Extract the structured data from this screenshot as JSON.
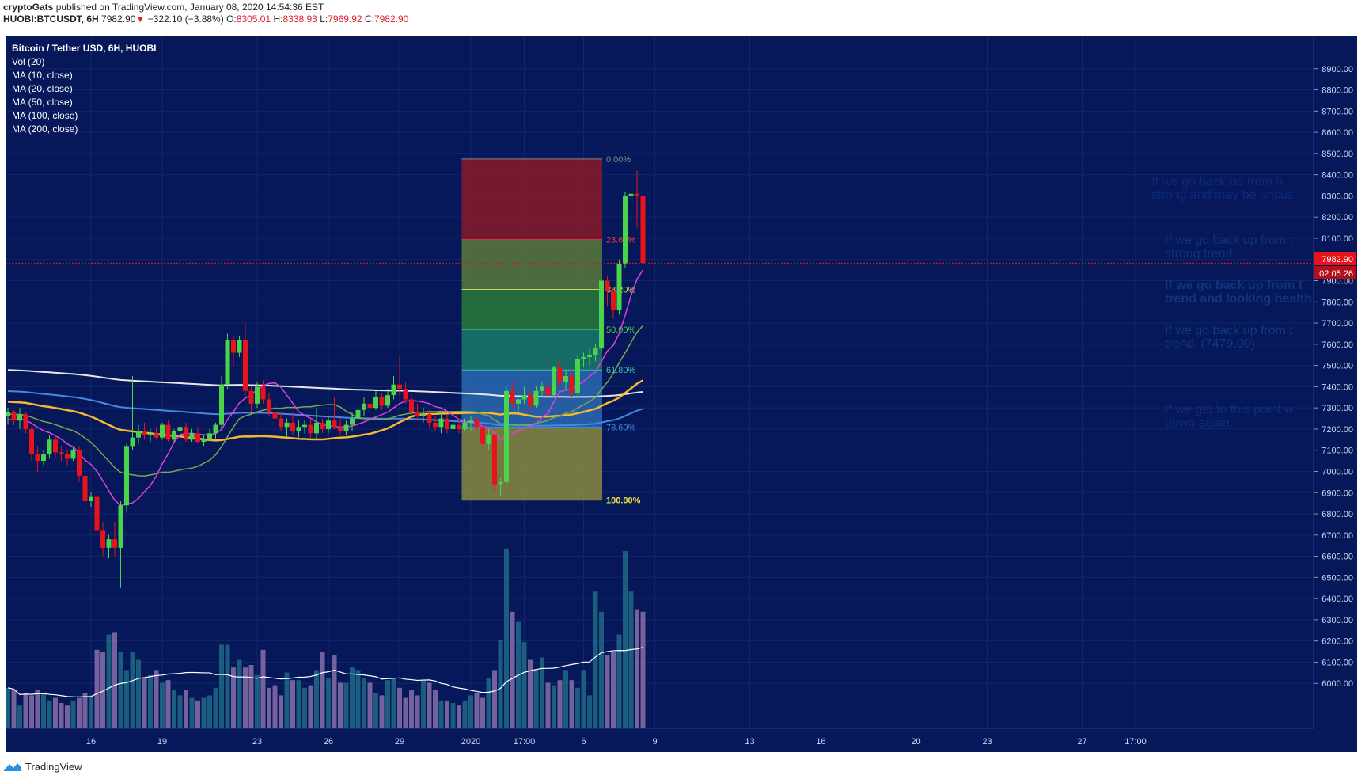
{
  "header": {
    "author": "cryptoGats",
    "published_text": "published on TradingView.com, January 08, 2020 14:54:36 EST",
    "symbol": "HUOBI:BTCUSDT, 6H",
    "last": "7982.90",
    "change_arrow": "▼",
    "change": "−322.10 (−3.88%)",
    "o_label": "O:",
    "o_value": "8305.01",
    "h_label": "H:",
    "h_value": "8338.93",
    "l_label": "L:",
    "l_value": "7969.92",
    "c_label": "C:",
    "c_value": "7982.90"
  },
  "legend": {
    "title": "Bitcoin / Tether USD, 6H, HUOBI",
    "items": [
      "Vol (20)",
      "MA (10, close)",
      "MA (20, close)",
      "MA (50, close)",
      "MA (100, close)",
      "MA (200, close)"
    ]
  },
  "price_badge": {
    "value": "7982.90",
    "countdown": "02:05:26"
  },
  "notes": [
    {
      "line1": "If we go back up from h",
      "line2": "strong and may be unsus"
    },
    {
      "line1": "If we go back up from t",
      "line2": "strong trend"
    },
    {
      "line1": "If we go back up from t",
      "line2": "trend and looking health"
    },
    {
      "line1": "If we go back up from t",
      "line2": "trend. (7479.00)"
    },
    {
      "line1": "If we get to this point w",
      "line2": "down again."
    }
  ],
  "footer": {
    "brand": "TradingView"
  },
  "colors": {
    "background": "#06185a",
    "up": "#4ad44a",
    "down": "#e8131b",
    "ma10": "#e040e0",
    "ma20": "#7aa84a",
    "ma50": "#f5b830",
    "ma100": "#4a88e0",
    "ma200": "#e8e8e8"
  },
  "chart_data": {
    "type": "candlestick",
    "ylim": [
      5900,
      9000
    ],
    "y_ticks": [
      "6000.00",
      "6100.00",
      "6200.00",
      "6300.00",
      "6400.00",
      "6500.00",
      "6600.00",
      "6700.00",
      "6800.00",
      "6900.00",
      "7000.00",
      "7100.00",
      "7200.00",
      "7300.00",
      "7400.00",
      "7500.00",
      "7600.00",
      "7700.00",
      "7800.00",
      "7900.00",
      "8000.00",
      "8100.00",
      "8200.00",
      "8300.00",
      "8400.00",
      "8500.00",
      "8600.00",
      "8700.00",
      "8800.00",
      "8900.00"
    ],
    "x_ticks": [
      {
        "label": "16",
        "bar": 14
      },
      {
        "label": "19",
        "bar": 26
      },
      {
        "label": "23",
        "bar": 42
      },
      {
        "label": "26",
        "bar": 54
      },
      {
        "label": "29",
        "bar": 66
      },
      {
        "label": "2020",
        "bar": 78
      },
      {
        "label": "17:00",
        "bar": 87
      },
      {
        "label": "6",
        "bar": 97
      },
      {
        "label": "9",
        "bar": 109
      },
      {
        "label": "13",
        "bar": 125
      },
      {
        "label": "16",
        "bar": 137
      },
      {
        "label": "20",
        "bar": 153
      },
      {
        "label": "23",
        "bar": 165
      },
      {
        "label": "27",
        "bar": 181
      },
      {
        "label": "17:00",
        "bar": 190
      }
    ],
    "candles": [
      [
        7260,
        7300,
        7220,
        7280
      ],
      [
        7280,
        7290,
        7220,
        7240
      ],
      [
        7240,
        7300,
        7200,
        7270
      ],
      [
        7270,
        7280,
        7180,
        7200
      ],
      [
        7200,
        7210,
        7050,
        7080
      ],
      [
        7080,
        7120,
        7000,
        7050
      ],
      [
        7050,
        7100,
        7030,
        7080
      ],
      [
        7080,
        7170,
        7060,
        7150
      ],
      [
        7150,
        7170,
        7060,
        7090
      ],
      [
        7090,
        7120,
        7050,
        7080
      ],
      [
        7080,
        7100,
        7030,
        7060
      ],
      [
        7060,
        7120,
        7050,
        7100
      ],
      [
        7100,
        7120,
        6950,
        6980
      ],
      [
        6980,
        7000,
        6820,
        6860
      ],
      [
        6860,
        6900,
        6830,
        6880
      ],
      [
        6880,
        6900,
        6680,
        6720
      ],
      [
        6720,
        6760,
        6600,
        6640
      ],
      [
        6640,
        6700,
        6590,
        6680
      ],
      [
        6680,
        6760,
        6600,
        6640
      ],
      [
        6640,
        6860,
        6450,
        6840
      ],
      [
        6840,
        7130,
        6810,
        7120
      ],
      [
        7120,
        7450,
        7100,
        7160
      ],
      [
        7160,
        7220,
        7130,
        7190
      ],
      [
        7190,
        7230,
        7150,
        7170
      ],
      [
        7170,
        7200,
        7140,
        7180
      ],
      [
        7180,
        7210,
        7150,
        7160
      ],
      [
        7160,
        7230,
        7150,
        7220
      ],
      [
        7220,
        7240,
        7140,
        7150
      ],
      [
        7150,
        7200,
        7140,
        7190
      ],
      [
        7190,
        7260,
        7170,
        7210
      ],
      [
        7210,
        7230,
        7140,
        7150
      ],
      [
        7150,
        7200,
        7140,
        7180
      ],
      [
        7180,
        7210,
        7130,
        7140
      ],
      [
        7140,
        7170,
        7120,
        7150
      ],
      [
        7150,
        7200,
        7140,
        7180
      ],
      [
        7180,
        7230,
        7150,
        7220
      ],
      [
        7220,
        7450,
        7200,
        7410
      ],
      [
        7410,
        7650,
        7390,
        7620
      ],
      [
        7620,
        7640,
        7500,
        7560
      ],
      [
        7560,
        7640,
        7540,
        7620
      ],
      [
        7620,
        7700,
        7350,
        7380
      ],
      [
        7380,
        7400,
        7280,
        7320
      ],
      [
        7320,
        7420,
        7300,
        7400
      ],
      [
        7400,
        7430,
        7320,
        7340
      ],
      [
        7340,
        7370,
        7260,
        7280
      ],
      [
        7280,
        7320,
        7230,
        7250
      ],
      [
        7250,
        7280,
        7190,
        7210
      ],
      [
        7210,
        7250,
        7160,
        7230
      ],
      [
        7230,
        7280,
        7170,
        7190
      ],
      [
        7190,
        7240,
        7160,
        7210
      ],
      [
        7210,
        7240,
        7180,
        7220
      ],
      [
        7220,
        7250,
        7160,
        7180
      ],
      [
        7180,
        7300,
        7150,
        7230
      ],
      [
        7230,
        7250,
        7180,
        7200
      ],
      [
        7200,
        7260,
        7180,
        7240
      ],
      [
        7240,
        7350,
        7200,
        7210
      ],
      [
        7210,
        7250,
        7170,
        7190
      ],
      [
        7190,
        7240,
        7170,
        7220
      ],
      [
        7220,
        7280,
        7190,
        7250
      ],
      [
        7250,
        7310,
        7230,
        7290
      ],
      [
        7290,
        7350,
        7260,
        7320
      ],
      [
        7320,
        7360,
        7280,
        7300
      ],
      [
        7300,
        7380,
        7290,
        7350
      ],
      [
        7350,
        7370,
        7290,
        7310
      ],
      [
        7310,
        7390,
        7300,
        7360
      ],
      [
        7360,
        7450,
        7340,
        7410
      ],
      [
        7410,
        7540,
        7360,
        7390
      ],
      [
        7390,
        7420,
        7320,
        7340
      ],
      [
        7340,
        7360,
        7260,
        7280
      ],
      [
        7280,
        7320,
        7240,
        7260
      ],
      [
        7260,
        7300,
        7230,
        7270
      ],
      [
        7270,
        7290,
        7210,
        7230
      ],
      [
        7230,
        7260,
        7190,
        7210
      ],
      [
        7210,
        7280,
        7180,
        7250
      ],
      [
        7250,
        7270,
        7180,
        7200
      ],
      [
        7200,
        7240,
        7150,
        7220
      ],
      [
        7220,
        7250,
        7180,
        7200
      ],
      [
        7200,
        7250,
        7190,
        7230
      ],
      [
        7230,
        7260,
        7190,
        7240
      ],
      [
        7240,
        7260,
        7200,
        7210
      ],
      [
        7210,
        7230,
        7110,
        7130
      ],
      [
        7130,
        7200,
        7100,
        7170
      ],
      [
        7170,
        7180,
        6900,
        6940
      ],
      [
        6940,
        6970,
        6880,
        6950
      ],
      [
        6950,
        7400,
        6940,
        7380
      ],
      [
        7380,
        7420,
        7300,
        7320
      ],
      [
        7320,
        7350,
        7280,
        7340
      ],
      [
        7340,
        7400,
        7320,
        7360
      ],
      [
        7360,
        7380,
        7290,
        7310
      ],
      [
        7310,
        7400,
        7300,
        7380
      ],
      [
        7380,
        7420,
        7350,
        7400
      ],
      [
        7400,
        7420,
        7340,
        7360
      ],
      [
        7360,
        7500,
        7350,
        7490
      ],
      [
        7490,
        7520,
        7400,
        7420
      ],
      [
        7420,
        7480,
        7380,
        7450
      ],
      [
        7450,
        7480,
        7350,
        7370
      ],
      [
        7370,
        7550,
        7360,
        7530
      ],
      [
        7530,
        7560,
        7490,
        7540
      ],
      [
        7540,
        7580,
        7500,
        7550
      ],
      [
        7550,
        7600,
        7520,
        7580
      ],
      [
        7580,
        7910,
        7570,
        7900
      ],
      [
        7900,
        7920,
        7780,
        7850
      ],
      [
        7850,
        7870,
        7720,
        7760
      ],
      [
        7760,
        8000,
        7740,
        7980
      ],
      [
        7980,
        8320,
        7960,
        8300
      ],
      [
        8300,
        8480,
        8050,
        8310
      ],
      [
        8310,
        8420,
        8150,
        8300
      ],
      [
        8300,
        8340,
        7970,
        7983
      ]
    ],
    "volume": [
      160,
      150,
      90,
      140,
      130,
      150,
      140,
      110,
      120,
      100,
      90,
      110,
      120,
      140,
      130,
      310,
      300,
      370,
      380,
      300,
      230,
      300,
      270,
      200,
      210,
      230,
      180,
      190,
      150,
      130,
      150,
      120,
      110,
      120,
      130,
      160,
      330,
      330,
      240,
      270,
      240,
      250,
      210,
      310,
      160,
      170,
      130,
      220,
      190,
      190,
      160,
      170,
      230,
      300,
      200,
      290,
      180,
      180,
      240,
      230,
      200,
      180,
      140,
      130,
      190,
      200,
      160,
      120,
      150,
      130,
      190,
      180,
      150,
      110,
      110,
      100,
      90,
      110,
      130,
      140,
      120,
      200,
      230,
      350,
      710,
      460,
      420,
      340,
      270,
      230,
      280,
      180,
      170,
      190,
      230,
      190,
      160,
      230,
      130,
      540,
      460,
      290,
      300,
      370,
      700,
      540,
      470,
      460
    ],
    "volume_ylim": [
      0,
      1000
    ],
    "fib_levels": [
      {
        "label": "0.00%",
        "price": 8474
      },
      {
        "label": "23.60%",
        "price": 8094
      },
      {
        "label": "38.20%",
        "price": 7859
      },
      {
        "label": "50.00%",
        "price": 7670
      },
      {
        "label": "61.80%",
        "price": 7479
      },
      {
        "label": "78.60%",
        "price": 7209
      },
      {
        "label": "100.00%",
        "price": 6865
      }
    ],
    "fib_range_bars": [
      77,
      100
    ],
    "current_price": 7982.9
  }
}
